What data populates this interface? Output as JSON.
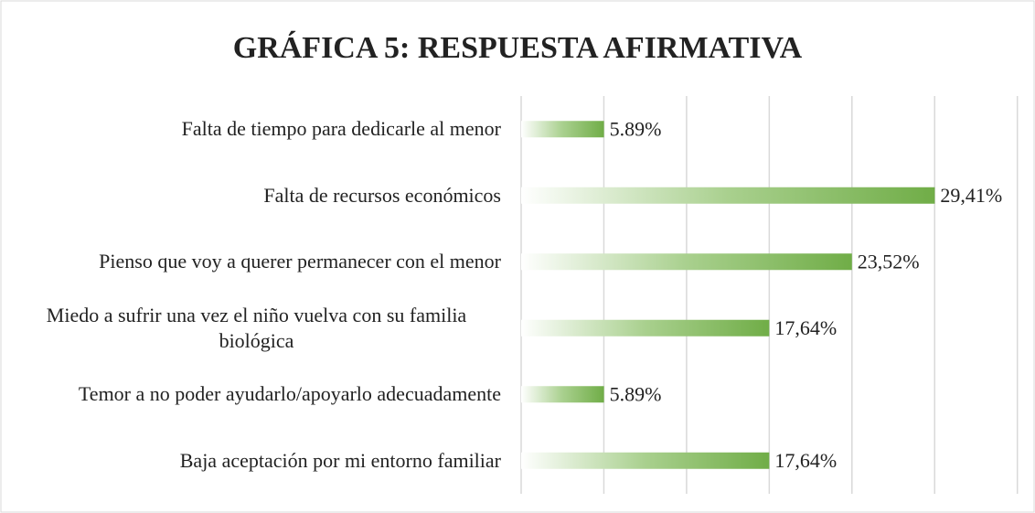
{
  "chart_data": {
    "type": "barh",
    "title": "GRÁFICA 5: RESPUESTA AFIRMATIVA",
    "categories": [
      "Falta de tiempo para dedicarle al menor",
      "Falta de recursos económicos",
      "Pienso que voy a querer permanecer con el menor",
      "Miedo a sufrir una vez el niño vuelva con su familia biológica",
      "Temor a no poder ayudarlo/apoyarlo adecuadamente",
      "Baja aceptación por mi entorno familiar"
    ],
    "values": [
      5.89,
      29.41,
      23.52,
      17.64,
      5.89,
      17.64
    ],
    "value_labels": [
      "5.89%",
      "29,41%",
      "23,52%",
      "17,64%",
      "5.89%",
      "17,64%"
    ],
    "color": "#70ad47",
    "xlim": [
      0,
      35.3
    ],
    "xticks": [
      0,
      5.88,
      11.76,
      17.64,
      23.52,
      29.4,
      35.28
    ],
    "grid": true
  }
}
